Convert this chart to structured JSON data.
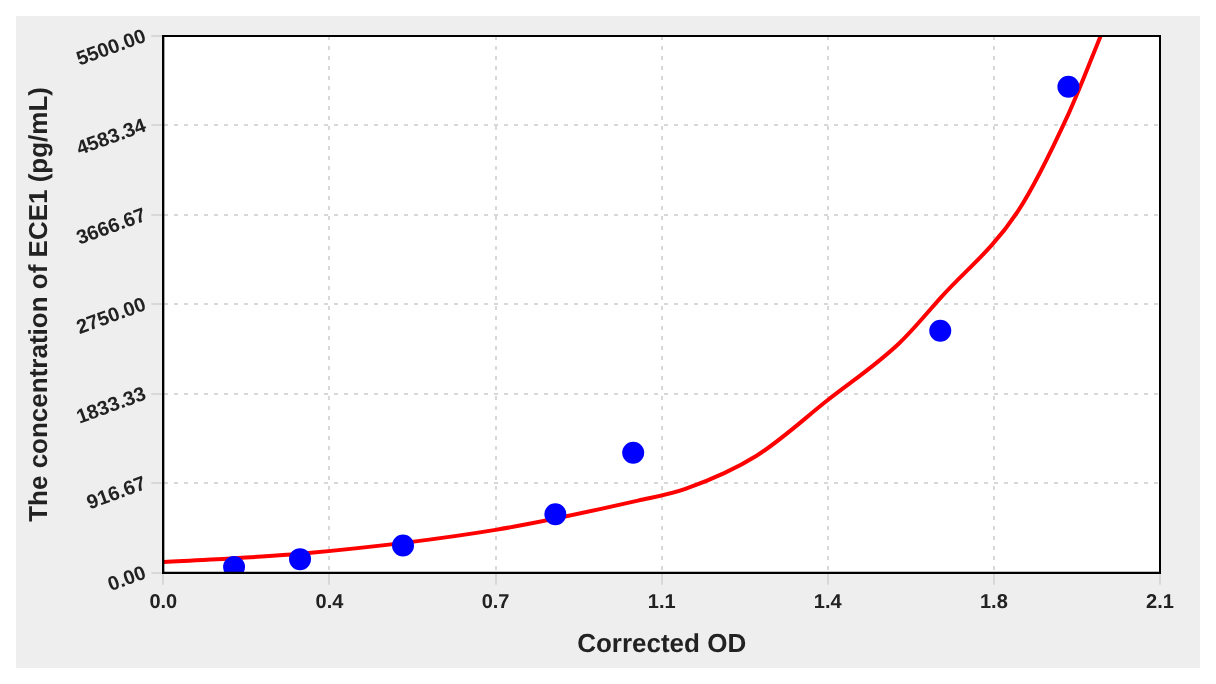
{
  "chart_data": {
    "type": "scatter",
    "xlabel": "Corrected OD",
    "ylabel": "The concentration of ECE1 (pg/mL)",
    "xlim": [
      0,
      2.1
    ],
    "ylim": [
      0,
      5500
    ],
    "xticks": [
      {
        "value": 0,
        "label": "0.0"
      },
      {
        "value": 0.35,
        "label": "0.4"
      },
      {
        "value": 0.7,
        "label": "0.7"
      },
      {
        "value": 1.05,
        "label": "1.1"
      },
      {
        "value": 1.4,
        "label": "1.4"
      },
      {
        "value": 1.75,
        "label": "1.8"
      },
      {
        "value": 2.1,
        "label": "2.1"
      }
    ],
    "yticks": [
      {
        "value": 0,
        "label": "0.00"
      },
      {
        "value": 916.67,
        "label": "916.67"
      },
      {
        "value": 1833.33,
        "label": "1833.33"
      },
      {
        "value": 2750,
        "label": "2750.00"
      },
      {
        "value": 3666.67,
        "label": "3666.67"
      },
      {
        "value": 4583.34,
        "label": "4583.34"
      },
      {
        "value": 5500,
        "label": "5500.00"
      }
    ],
    "grid": true,
    "legend": false,
    "series": [
      {
        "color": "#0000ff",
        "marker": "circle",
        "x": [
          0.149,
          0.288,
          0.505,
          0.826,
          0.99,
          1.637,
          1.907
        ],
        "values": [
          60,
          140,
          280,
          600,
          1230,
          2480,
          4980
        ]
      },
      {
        "type": "line",
        "color": "#ff0000",
        "marker": "none",
        "x": [
          0,
          0.3,
          0.7,
          1.0,
          1.1,
          1.25,
          1.4,
          1.55,
          1.64,
          1.8,
          1.907,
          1.975
        ],
        "values": [
          110,
          200,
          440,
          740,
          860,
          1200,
          1770,
          2350,
          2830,
          3700,
          4700,
          5500
        ]
      }
    ]
  }
}
